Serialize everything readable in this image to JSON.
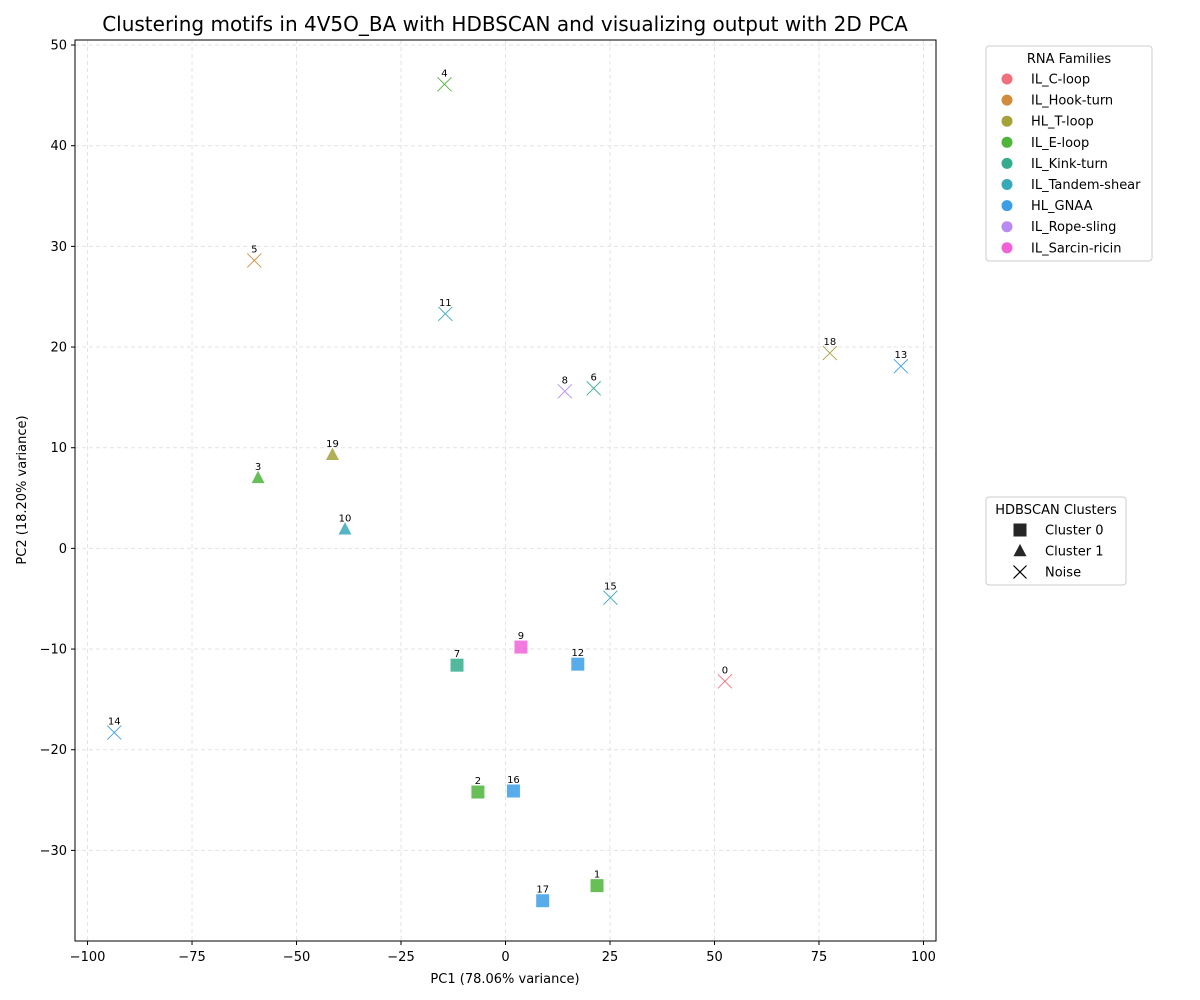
{
  "chart_data": {
    "type": "scatter",
    "title": "Clustering motifs in 4V5O_BA with HDBSCAN and visualizing output with 2D PCA",
    "xlabel": "PC1 (78.06% variance)",
    "ylabel": "PC2 (18.20% variance)",
    "xlim": [
      -103,
      103
    ],
    "ylim": [
      -39,
      50.5
    ],
    "xticks": [
      -100,
      -75,
      -50,
      -25,
      0,
      25,
      50,
      75,
      100
    ],
    "xtick_labels": [
      "−100",
      "−75",
      "−50",
      "−25",
      "0",
      "25",
      "50",
      "75",
      "100"
    ],
    "yticks": [
      -30,
      -20,
      -10,
      0,
      10,
      20,
      30,
      40,
      50
    ],
    "ytick_labels": [
      "−30",
      "−20",
      "−10",
      "0",
      "10",
      "20",
      "30",
      "40",
      "50"
    ],
    "grid": true,
    "families": [
      {
        "name": "IL_C-loop",
        "color": "#f0707d"
      },
      {
        "name": "IL_Hook-turn",
        "color": "#d08c3c"
      },
      {
        "name": "HL_T-loop",
        "color": "#a5a23a"
      },
      {
        "name": "IL_E-loop",
        "color": "#4fb43a"
      },
      {
        "name": "IL_Kink-turn",
        "color": "#35ad8d"
      },
      {
        "name": "IL_Tandem-shear",
        "color": "#38a9b9"
      },
      {
        "name": "HL_GNAA",
        "color": "#3b9ee6"
      },
      {
        "name": "IL_Rope-sling",
        "color": "#b98af2"
      },
      {
        "name": "IL_Sarcin-ricin",
        "color": "#f062d7"
      }
    ],
    "clusters": [
      {
        "name": "Cluster 0",
        "marker": "square"
      },
      {
        "name": "Cluster 1",
        "marker": "triangle"
      },
      {
        "name": "Noise",
        "marker": "x"
      }
    ],
    "family_legend_title": "RNA Families",
    "cluster_legend_title": "HDBSCAN Clusters",
    "family_legend_position": "upper right, outside plot",
    "cluster_legend_position": "center right, outside plot",
    "points": [
      {
        "label": "0",
        "x": 52.5,
        "y": -13.2,
        "family": "IL_C-loop",
        "cluster": "Noise"
      },
      {
        "label": "1",
        "x": 21.9,
        "y": -33.5,
        "family": "IL_E-loop",
        "cluster": "Cluster 0"
      },
      {
        "label": "2",
        "x": -6.6,
        "y": -24.2,
        "family": "IL_E-loop",
        "cluster": "Cluster 0"
      },
      {
        "label": "3",
        "x": -59.2,
        "y": 7.0,
        "family": "IL_E-loop",
        "cluster": "Cluster 1"
      },
      {
        "label": "4",
        "x": -14.6,
        "y": 46.1,
        "family": "IL_E-loop",
        "cluster": "Noise"
      },
      {
        "label": "5",
        "x": -60.1,
        "y": 28.6,
        "family": "IL_Hook-turn",
        "cluster": "Noise"
      },
      {
        "label": "6",
        "x": 21.1,
        "y": 15.9,
        "family": "IL_Kink-turn",
        "cluster": "Noise"
      },
      {
        "label": "7",
        "x": -11.6,
        "y": -11.6,
        "family": "IL_Kink-turn",
        "cluster": "Cluster 0"
      },
      {
        "label": "8",
        "x": 14.2,
        "y": 15.6,
        "family": "IL_Rope-sling",
        "cluster": "Noise"
      },
      {
        "label": "9",
        "x": 3.7,
        "y": -9.8,
        "family": "IL_Sarcin-ricin",
        "cluster": "Cluster 0"
      },
      {
        "label": "10",
        "x": -38.4,
        "y": 1.9,
        "family": "IL_Tandem-shear",
        "cluster": "Cluster 1"
      },
      {
        "label": "11",
        "x": -14.4,
        "y": 23.3,
        "family": "IL_Tandem-shear",
        "cluster": "Noise"
      },
      {
        "label": "12",
        "x": 17.3,
        "y": -11.5,
        "family": "HL_GNAA",
        "cluster": "Cluster 0"
      },
      {
        "label": "13",
        "x": 94.6,
        "y": 18.1,
        "family": "HL_GNAA",
        "cluster": "Noise"
      },
      {
        "label": "14",
        "x": -93.6,
        "y": -18.3,
        "family": "HL_GNAA",
        "cluster": "Noise"
      },
      {
        "label": "15",
        "x": 25.1,
        "y": -4.9,
        "family": "IL_Tandem-shear",
        "cluster": "Noise"
      },
      {
        "label": "16",
        "x": 1.9,
        "y": -24.1,
        "family": "HL_GNAA",
        "cluster": "Cluster 0"
      },
      {
        "label": "17",
        "x": 8.9,
        "y": -35.0,
        "family": "HL_GNAA",
        "cluster": "Cluster 0"
      },
      {
        "label": "18",
        "x": 77.6,
        "y": 19.4,
        "family": "HL_T-loop",
        "cluster": "Noise"
      },
      {
        "label": "19",
        "x": -41.4,
        "y": 9.3,
        "family": "HL_T-loop",
        "cluster": "Cluster 1"
      }
    ]
  }
}
